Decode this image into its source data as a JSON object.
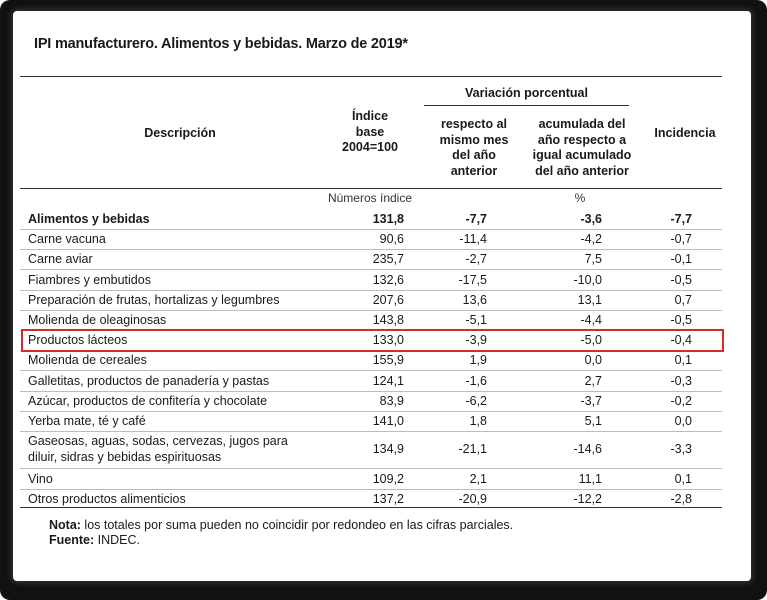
{
  "title": "IPI manufacturero. Alimentos y bebidas. Marzo de 2019*",
  "headers": {
    "descripcion": "Descripción",
    "indice": [
      "Índice",
      "base",
      "2004=100"
    ],
    "variacion": "Variación porcentual",
    "respecto": [
      "respecto al",
      "mismo mes",
      "del año",
      "anterior"
    ],
    "acumulada": [
      "acumulada del",
      "año respecto a",
      "igual acumulado",
      "del año anterior"
    ],
    "incidencia": "Incidencia"
  },
  "units": {
    "numeros_indice": "Números índice",
    "percent": "%"
  },
  "rows": [
    {
      "desc": "Alimentos y bebidas",
      "idx": "131,8",
      "v1": "-7,7",
      "v2": "-3,6",
      "inc": "-7,7"
    },
    {
      "desc": "Carne vacuna",
      "idx": "90,6",
      "v1": "-11,4",
      "v2": "-4,2",
      "inc": "-0,7"
    },
    {
      "desc": "Carne aviar",
      "idx": "235,7",
      "v1": "-2,7",
      "v2": "7,5",
      "inc": "-0,1"
    },
    {
      "desc": "Fiambres y embutidos",
      "idx": "132,6",
      "v1": "-17,5",
      "v2": "-10,0",
      "inc": "-0,5"
    },
    {
      "desc": "Preparación de frutas, hortalizas y legumbres",
      "idx": "207,6",
      "v1": "13,6",
      "v2": "13,1",
      "inc": "0,7"
    },
    {
      "desc": "Molienda de oleaginosas",
      "idx": "143,8",
      "v1": "-5,1",
      "v2": "-4,4",
      "inc": "-0,5"
    },
    {
      "desc": "Productos lácteos",
      "idx": "133,0",
      "v1": "-3,9",
      "v2": "-5,0",
      "inc": "-0,4"
    },
    {
      "desc": "Molienda de cereales",
      "idx": "155,9",
      "v1": "1,9",
      "v2": "0,0",
      "inc": "0,1"
    },
    {
      "desc": "Galletitas, productos de panadería y pastas",
      "idx": "124,1",
      "v1": "-1,6",
      "v2": "2,7",
      "inc": "-0,3"
    },
    {
      "desc": "Azúcar, productos de confitería y chocolate",
      "idx": "83,9",
      "v1": "-6,2",
      "v2": "-3,7",
      "inc": "-0,2"
    },
    {
      "desc": "Yerba mate, té y café",
      "idx": "141,0",
      "v1": "1,8",
      "v2": "5,1",
      "inc": "0,0"
    },
    {
      "desc": "Gaseosas, aguas, sodas, cervezas, jugos para diluir, sidras y bebidas espirituosas",
      "idx": "134,9",
      "v1": "-21,1",
      "v2": "-14,6",
      "inc": "-3,3"
    },
    {
      "desc": "Vino",
      "idx": "109,2",
      "v1": "2,1",
      "v2": "11,1",
      "inc": "0,1"
    },
    {
      "desc": "Otros productos alimenticios",
      "idx": "137,2",
      "v1": "-20,9",
      "v2": "-12,2",
      "inc": "-2,8"
    }
  ],
  "notes": {
    "nota_label": "Nota:",
    "nota_text": " los totales por suma pueden no coincidir por redondeo en las cifras parciales.",
    "fuente_label": "Fuente:",
    "fuente_text": " INDEC."
  },
  "highlight_color": "#d62b2b"
}
